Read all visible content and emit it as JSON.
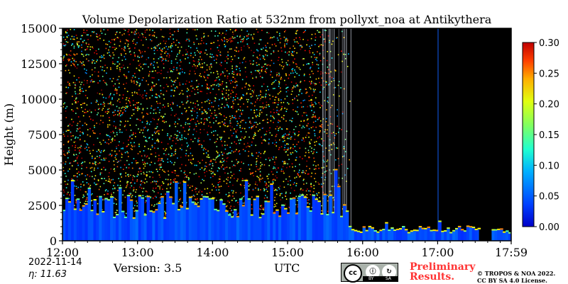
{
  "chart_data": {
    "type": "heatmap",
    "title": "Volume Depolarization Ratio at 532nm from pollyxt_noa at Antikythera",
    "xlabel": "UTC",
    "ylabel": "Height (m)",
    "x_range": [
      "12:00",
      "17:59"
    ],
    "x_ticks": [
      "12:00",
      "13:00",
      "14:00",
      "15:00",
      "16:00",
      "17:00",
      "17:59"
    ],
    "ylim": [
      0,
      15000
    ],
    "y_ticks": [
      0,
      2500,
      5000,
      7500,
      10000,
      12500,
      15000
    ],
    "colorbar": {
      "range": [
        0.0,
        0.3
      ],
      "ticks": [
        "0.00",
        "0.05",
        "0.10",
        "0.15",
        "0.20",
        "0.25",
        "0.30"
      ],
      "colormap": "jet"
    },
    "regions": [
      {
        "x_start_h": 12.0,
        "x_end_h": 15.8,
        "description_values": {
          "low_layer_top_m": 2500,
          "low_layer_ratio": 0.02,
          "upper_noise": true
        }
      },
      {
        "x_start_h": 15.8,
        "x_end_h": 17.98,
        "description_values": {
          "low_layer_top_m": 800,
          "low_layer_ratio": 0.02,
          "upper_noise": false
        }
      },
      {
        "x_start_h": 17.55,
        "x_end_h": 17.7,
        "description_values": {
          "no_data": true
        }
      }
    ]
  },
  "footer": {
    "date": "2022-11-14",
    "eta": "η:  11.63",
    "version": "Version: 3.5",
    "xlabel_utc": "UTC",
    "preliminary_line1": "Preliminary",
    "preliminary_line2": "Results.",
    "copyright_line1": "© TROPOS & NOA 2022.",
    "copyright_line2": "CC BY SA 4.0 License.",
    "badge_cc": "cc",
    "badge_by": "BY",
    "badge_sa": "SA"
  },
  "colors": {
    "background_nodata": "#000000",
    "accent_red": "#ff3333"
  }
}
